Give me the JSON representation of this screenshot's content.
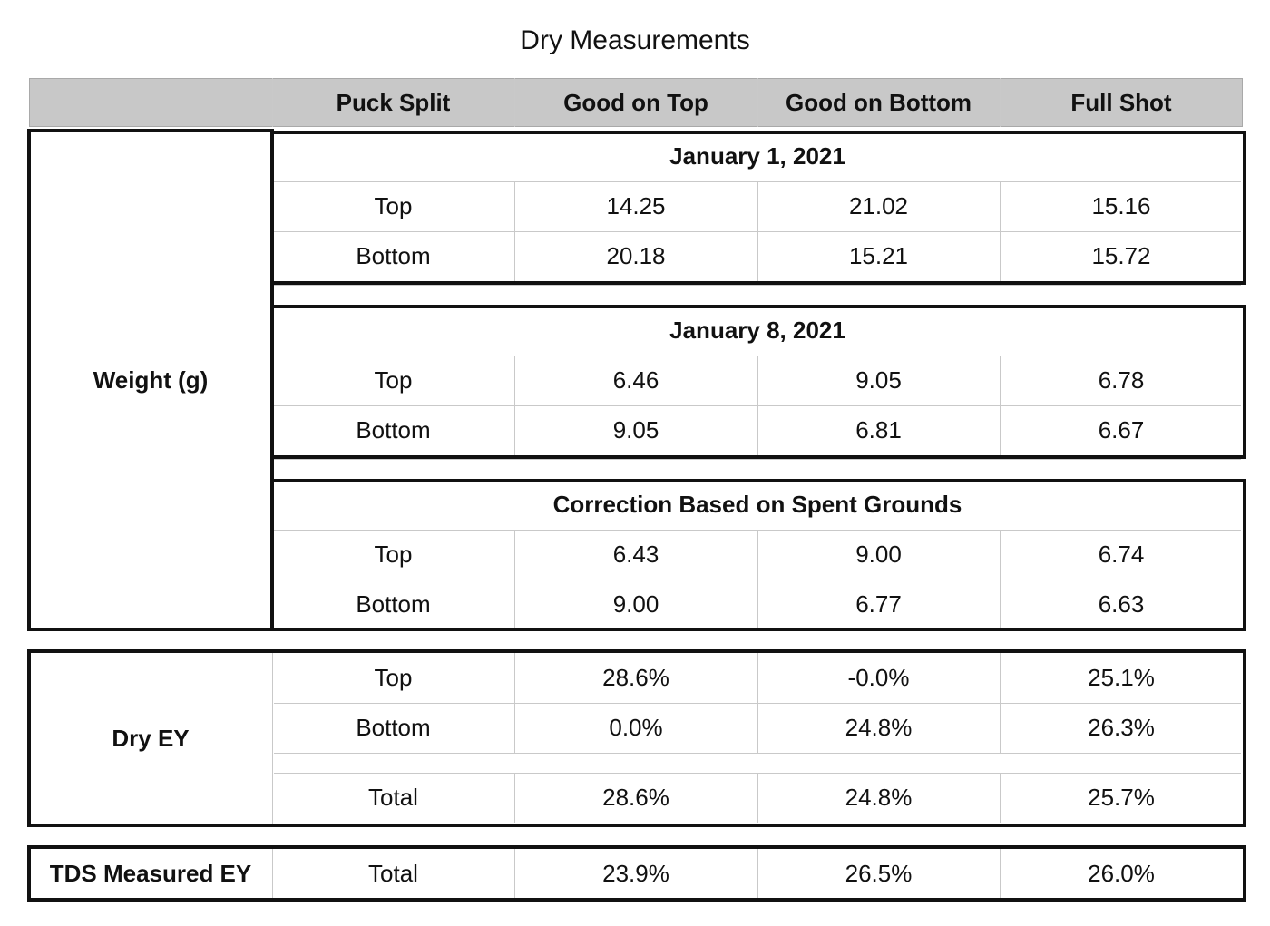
{
  "title": "Dry Measurements",
  "colors": {
    "header_bg": "#c8c8c8",
    "border": "#111111",
    "grid": "#c9c9c9"
  },
  "columns": [
    "Puck Split",
    "Good on Top",
    "Good on Bottom",
    "Full Shot"
  ],
  "weight": {
    "label": "Weight (g)",
    "sections": [
      {
        "title": "January 1, 2021",
        "rows": [
          {
            "label": "Top",
            "values": [
              "14.25",
              "21.02",
              "15.16"
            ]
          },
          {
            "label": "Bottom",
            "values": [
              "20.18",
              "15.21",
              "15.72"
            ]
          }
        ]
      },
      {
        "title": "January 8, 2021",
        "rows": [
          {
            "label": "Top",
            "values": [
              "6.46",
              "9.05",
              "6.78"
            ]
          },
          {
            "label": "Bottom",
            "values": [
              "9.05",
              "6.81",
              "6.67"
            ]
          }
        ]
      },
      {
        "title": "Correction Based on Spent Grounds",
        "rows": [
          {
            "label": "Top",
            "values": [
              "6.43",
              "9.00",
              "6.74"
            ]
          },
          {
            "label": "Bottom",
            "values": [
              "9.00",
              "6.77",
              "6.63"
            ]
          }
        ]
      }
    ]
  },
  "dry_ey": {
    "label": "Dry EY",
    "rows": [
      {
        "label": "Top",
        "values": [
          "28.6%",
          "-0.0%",
          "25.1%"
        ]
      },
      {
        "label": "Bottom",
        "values": [
          "0.0%",
          "24.8%",
          "26.3%"
        ]
      },
      {
        "label": "Total",
        "values": [
          "28.6%",
          "24.8%",
          "25.7%"
        ]
      }
    ]
  },
  "tds": {
    "label": "TDS Measured EY",
    "row": {
      "label": "Total",
      "values": [
        "23.9%",
        "26.5%",
        "26.0%"
      ]
    }
  }
}
